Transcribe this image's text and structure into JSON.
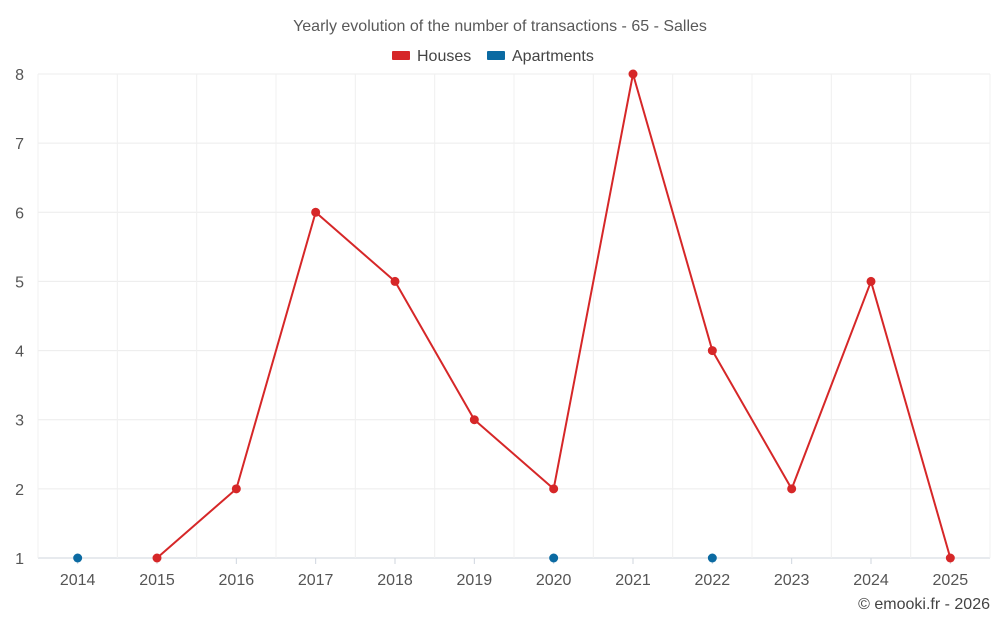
{
  "chart_data": {
    "type": "line",
    "title": "Yearly evolution of the number of transactions - 65 - Salles",
    "categories": [
      "2014",
      "2015",
      "2016",
      "2017",
      "2018",
      "2019",
      "2020",
      "2021",
      "2022",
      "2023",
      "2024",
      "2025"
    ],
    "series": [
      {
        "name": "Houses",
        "color": "#d62728",
        "values": [
          null,
          1,
          2,
          6,
          5,
          3,
          2,
          8,
          4,
          2,
          5,
          1
        ]
      },
      {
        "name": "Apartments",
        "color": "#0b6aa2",
        "values": [
          1,
          null,
          null,
          null,
          null,
          null,
          1,
          null,
          1,
          null,
          null,
          null
        ]
      }
    ],
    "ylim": [
      1,
      8
    ],
    "yticks": [
      1,
      2,
      3,
      4,
      5,
      6,
      7,
      8
    ],
    "xlabel": "",
    "ylabel": "",
    "grid": true,
    "legend": "top-center"
  },
  "credit": "© emooki.fr - 2026"
}
